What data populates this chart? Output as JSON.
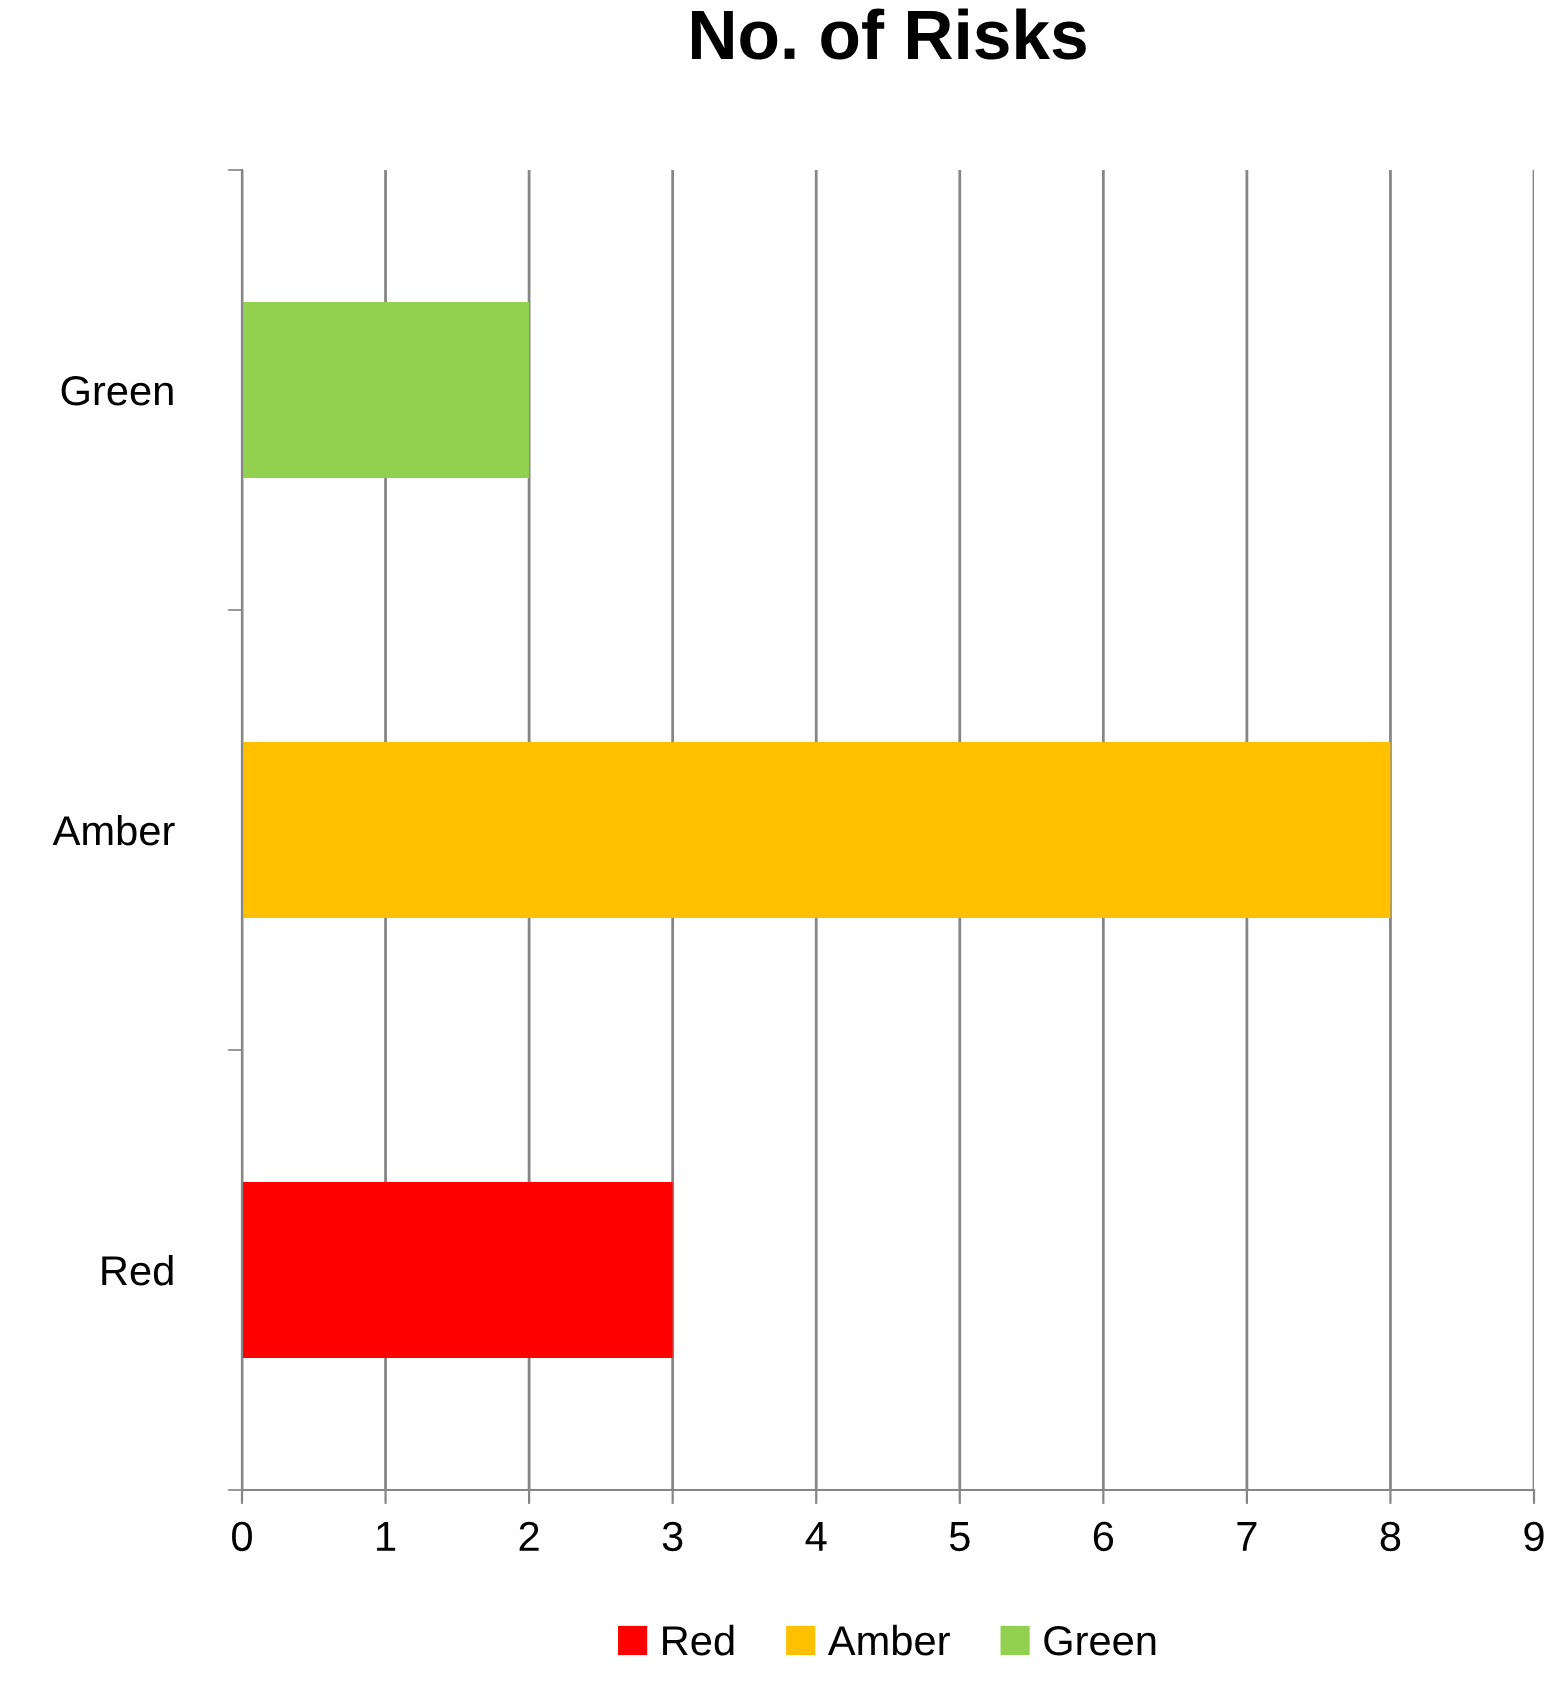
{
  "chart_data": {
    "type": "bar",
    "title": "No. of Risks",
    "orientation": "horizontal",
    "categories": [
      "Green",
      "Amber",
      "Red"
    ],
    "series": [
      {
        "name": "Red",
        "color": "#ff0000",
        "values": [
          null,
          null,
          3
        ]
      },
      {
        "name": "Amber",
        "color": "#ffc000",
        "values": [
          null,
          8,
          null
        ]
      },
      {
        "name": "Green",
        "color": "#92d050",
        "values": [
          2,
          null,
          null
        ]
      }
    ],
    "xlim": [
      0,
      9
    ],
    "xticks": [
      0,
      1,
      2,
      3,
      4,
      5,
      6,
      7,
      8,
      9
    ],
    "grid": "x",
    "legend": "bottom"
  }
}
